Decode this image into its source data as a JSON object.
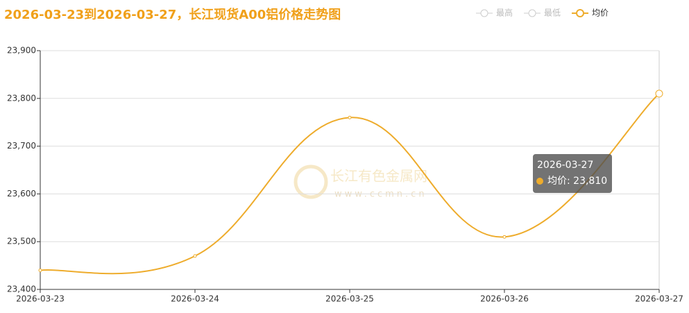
{
  "chart_data": {
    "type": "line",
    "title": "2026-03-23到2026-03-27，长江现货A00铝价格走势图",
    "x": [
      "2026-03-23",
      "2026-03-24",
      "2026-03-25",
      "2026-03-26",
      "2026-03-27"
    ],
    "series": [
      {
        "name": "均价",
        "color": "#eeac2c",
        "values": [
          23440,
          23470,
          23760,
          23510,
          23810
        ]
      }
    ],
    "hidden_series": [
      "最高",
      "最低"
    ],
    "ylim": [
      23400,
      23900
    ],
    "yticks": [
      {
        "value": 23400,
        "label": "23,400"
      },
      {
        "value": 23500,
        "label": "23,500"
      },
      {
        "value": 23600,
        "label": "23,600"
      },
      {
        "value": 23700,
        "label": "23,700"
      },
      {
        "value": 23800,
        "label": "23,800"
      },
      {
        "value": 23900,
        "label": "23,900"
      }
    ],
    "grid": true,
    "smooth": true,
    "tooltip": {
      "title": "2026-03-27",
      "text": "均价: 23,810",
      "index": 4
    },
    "watermark": {
      "name": "长江有色金属网",
      "url": "www.ccmn.cn"
    }
  }
}
